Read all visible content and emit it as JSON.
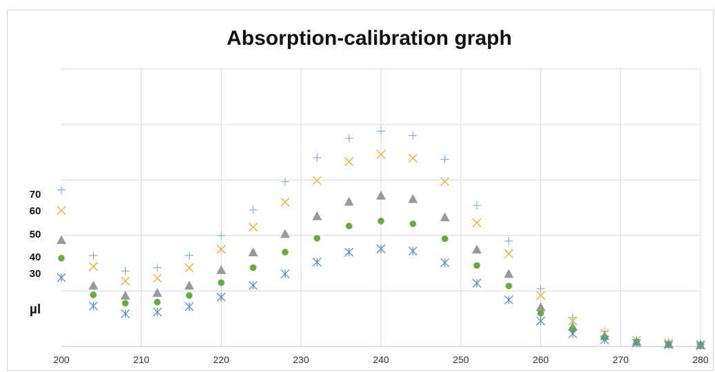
{
  "chart_data": {
    "type": "scatter",
    "title": "Absorption-calibration graph",
    "xlabel": "",
    "ylabel": "",
    "xlim": [
      200,
      280
    ],
    "x_ticks": [
      200,
      210,
      220,
      230,
      240,
      250,
      260,
      270,
      280
    ],
    "y_gridlines": 5,
    "grid": true,
    "unit_label": "µl",
    "series_labels": [
      "70",
      "60",
      "50",
      "40",
      "30"
    ],
    "x": [
      200,
      204,
      208,
      212,
      216,
      220,
      224,
      228,
      232,
      236,
      240,
      244,
      248,
      252,
      256,
      260,
      264,
      268,
      272,
      276,
      280
    ],
    "series": [
      {
        "name": "70",
        "marker": "plus",
        "color": "#8ea9cf",
        "values": [
          2.82,
          1.64,
          1.36,
          1.42,
          1.64,
          2.0,
          2.46,
          2.97,
          3.4,
          3.75,
          3.88,
          3.8,
          3.37,
          2.54,
          1.9,
          1.04,
          0.52,
          0.27,
          0.12,
          0.07,
          0.05
        ]
      },
      {
        "name": "60",
        "marker": "x",
        "color": "#e6b44a",
        "values": [
          2.45,
          1.44,
          1.18,
          1.23,
          1.42,
          1.75,
          2.15,
          2.6,
          2.99,
          3.33,
          3.46,
          3.39,
          2.97,
          2.23,
          1.67,
          0.92,
          0.46,
          0.24,
          0.11,
          0.06,
          0.04
        ]
      },
      {
        "name": "50",
        "marker": "triangle",
        "color": "#9a9a9a",
        "values": [
          1.92,
          1.1,
          0.92,
          0.97,
          1.1,
          1.38,
          1.7,
          2.03,
          2.35,
          2.61,
          2.72,
          2.66,
          2.33,
          1.75,
          1.31,
          0.71,
          0.36,
          0.19,
          0.09,
          0.05,
          0.03
        ]
      },
      {
        "name": "40",
        "marker": "circle",
        "color": "#6aaa43",
        "values": [
          1.59,
          0.93,
          0.78,
          0.8,
          0.92,
          1.15,
          1.42,
          1.7,
          1.95,
          2.17,
          2.26,
          2.21,
          1.94,
          1.46,
          1.09,
          0.6,
          0.3,
          0.16,
          0.08,
          0.04,
          0.03
        ]
      },
      {
        "name": "30",
        "marker": "asterisk",
        "color": "#5a8ec9",
        "values": [
          1.24,
          0.73,
          0.59,
          0.62,
          0.72,
          0.89,
          1.1,
          1.31,
          1.52,
          1.7,
          1.76,
          1.72,
          1.51,
          1.14,
          0.84,
          0.46,
          0.23,
          0.12,
          0.06,
          0.03,
          0.02
        ]
      }
    ]
  }
}
